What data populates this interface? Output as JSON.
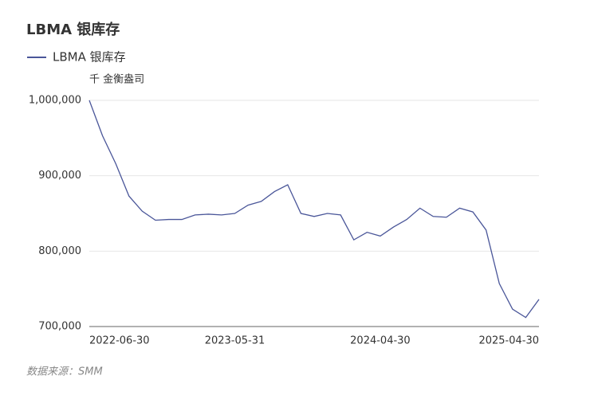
{
  "chart_data": {
    "type": "line",
    "title": "LBMA 银库存",
    "y_unit": "千 金衡盎司",
    "source": "数据来源：SMM",
    "categories": [
      "2022-06-30",
      null,
      null,
      null,
      null,
      null,
      null,
      null,
      null,
      null,
      null,
      "2023-05-31",
      null,
      null,
      null,
      null,
      null,
      null,
      null,
      null,
      null,
      null,
      "2024-04-30",
      null,
      null,
      null,
      null,
      null,
      null,
      null,
      null,
      null,
      null,
      null,
      "2025-04-30"
    ],
    "series": [
      {
        "name": "LBMA 银库存",
        "color": "#4a5699",
        "values": [
          1000000,
          953000,
          916000,
          873000,
          853000,
          841000,
          842000,
          842000,
          848000,
          849000,
          848000,
          850000,
          861000,
          866000,
          879000,
          888000,
          850000,
          846000,
          850000,
          848000,
          815000,
          825000,
          820000,
          832000,
          842000,
          857000,
          846000,
          845000,
          857000,
          852000,
          828000,
          757000,
          723000,
          712000,
          736000
        ]
      }
    ],
    "ylim": [
      700000,
      1000000
    ],
    "yticks": [
      {
        "value": 700000,
        "label": "700,000"
      },
      {
        "value": 800000,
        "label": "800,000"
      },
      {
        "value": 900000,
        "label": "900,000"
      },
      {
        "value": 1000000,
        "label": "1,000,000"
      }
    ],
    "grid": true
  }
}
